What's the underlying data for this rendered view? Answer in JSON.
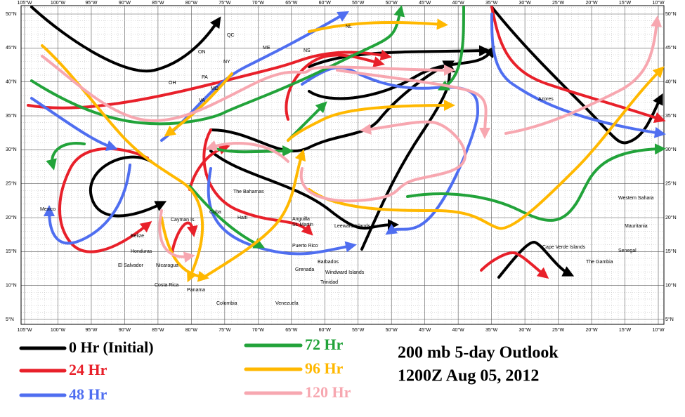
{
  "map": {
    "lon_labels": [
      "105°W",
      "100°W",
      "95°W",
      "90°W",
      "85°W",
      "80°W",
      "75°W",
      "70°W",
      "65°W",
      "60°W",
      "55°W",
      "50°W",
      "45°W",
      "40°W",
      "35°W",
      "30°W",
      "25°W",
      "20°W",
      "15°W",
      "10°W"
    ],
    "lat_labels": [
      "50°N",
      "45°N",
      "40°N",
      "35°N",
      "30°N",
      "25°N",
      "20°N",
      "15°N",
      "10°N",
      "5°N"
    ],
    "places": [
      "QC",
      "ON",
      "NY",
      "PA",
      "OH",
      "VA",
      "MD",
      "ME",
      "NS",
      "NL",
      "Azores",
      "Mexico",
      "Belize",
      "Honduras",
      "El Salvador",
      "Nicaragua",
      "Costa Rica",
      "Panama",
      "Colombia",
      "Venezuela",
      "Cayman Is.",
      "Cuba",
      "Haiti",
      "The Bahamas",
      "Puerto Rico",
      "Grenada",
      "Barbados",
      "Trinidad",
      "Windward Islands",
      "Leeward Islands",
      "Anguilla",
      "St. Martin",
      "Western Sahara",
      "Mauritania",
      "Senegal",
      "The Gambia",
      "Cape Verde Islands"
    ]
  },
  "legend": [
    {
      "label": "0 Hr (Initial)",
      "color": "#000000"
    },
    {
      "label": "24 Hr",
      "color": "#e8202a"
    },
    {
      "label": "48 Hr",
      "color": "#4f6ef0"
    },
    {
      "label": "72 Hr",
      "color": "#22a33a"
    },
    {
      "label": "96 Hr",
      "color": "#ffb800"
    },
    {
      "label": "120 Hr",
      "color": "#f7a7b0"
    }
  ],
  "title": [
    "200 mb 5-day Outlook",
    "1200Z Aug 05, 2012"
  ]
}
